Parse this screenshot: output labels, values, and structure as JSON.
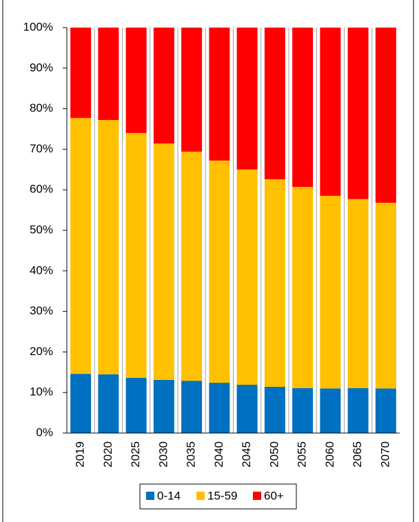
{
  "chart_data": {
    "type": "stacked-bar",
    "categories": [
      "2019",
      "2020",
      "2025",
      "2030",
      "2035",
      "2040",
      "2045",
      "2050",
      "2055",
      "2060",
      "2065",
      "2070"
    ],
    "series": [
      {
        "name": "0-14",
        "color": "#0070c0",
        "values": [
          14.6,
          14.5,
          13.6,
          13.1,
          12.9,
          12.4,
          11.9,
          11.4,
          11.1,
          11.0,
          11.1,
          11.0
        ]
      },
      {
        "name": "15-59",
        "color": "#ffc000",
        "values": [
          63.1,
          62.7,
          60.4,
          58.3,
          56.5,
          54.8,
          53.1,
          51.2,
          49.6,
          47.5,
          46.6,
          45.8
        ]
      },
      {
        "name": "60+",
        "color": "#ff0000",
        "values": [
          22.3,
          22.8,
          26.0,
          28.6,
          30.6,
          32.8,
          35.0,
          37.4,
          39.3,
          41.5,
          42.3,
          43.2
        ]
      }
    ],
    "ylim": [
      0,
      100
    ],
    "yticks": [
      {
        "value": 0,
        "label": "0%"
      },
      {
        "value": 10,
        "label": "10%"
      },
      {
        "value": 20,
        "label": "20%"
      },
      {
        "value": 30,
        "label": "30%"
      },
      {
        "value": 40,
        "label": "40%"
      },
      {
        "value": 50,
        "label": "50%"
      },
      {
        "value": 60,
        "label": "60%"
      },
      {
        "value": 70,
        "label": "70%"
      },
      {
        "value": 80,
        "label": "80%"
      },
      {
        "value": 90,
        "label": "90%"
      },
      {
        "value": 100,
        "label": "100%"
      }
    ],
    "grid": "x",
    "legend": "bottom"
  }
}
